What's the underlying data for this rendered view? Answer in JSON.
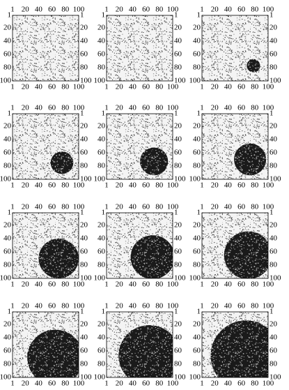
{
  "chart_data": [
    {
      "type": "heatmap",
      "xlim": [
        1,
        100
      ],
      "ylim": [
        1,
        100
      ],
      "xticks": [
        1,
        20,
        40,
        60,
        80,
        100
      ],
      "yticks": [
        1,
        20,
        40,
        60,
        80,
        100
      ]
    },
    {
      "type": "heatmap",
      "xlim": [
        1,
        100
      ],
      "ylim": [
        1,
        100
      ],
      "xticks": [
        1,
        20,
        40,
        60,
        80,
        100
      ],
      "yticks": [
        1,
        20,
        40,
        60,
        80,
        100
      ]
    },
    {
      "type": "heatmap",
      "xlim": [
        1,
        100
      ],
      "ylim": [
        1,
        100
      ],
      "xticks": [
        1,
        20,
        40,
        60,
        80,
        100
      ],
      "yticks": [
        1,
        20,
        40,
        60,
        80,
        100
      ],
      "circle": {
        "x": 78,
        "y": 77,
        "r": 10
      }
    },
    {
      "type": "heatmap",
      "xlim": [
        1,
        100
      ],
      "ylim": [
        1,
        100
      ],
      "xticks": [
        1,
        20,
        40,
        60,
        80,
        100
      ],
      "yticks": [
        1,
        20,
        40,
        60,
        80,
        100
      ],
      "circle": {
        "x": 75,
        "y": 75,
        "r": 17
      }
    },
    {
      "type": "heatmap",
      "xlim": [
        1,
        100
      ],
      "ylim": [
        1,
        100
      ],
      "xticks": [
        1,
        20,
        40,
        60,
        80,
        100
      ],
      "yticks": [
        1,
        20,
        40,
        60,
        80,
        100
      ],
      "circle": {
        "x": 72,
        "y": 73,
        "r": 21
      }
    },
    {
      "type": "heatmap",
      "xlim": [
        1,
        100
      ],
      "ylim": [
        1,
        100
      ],
      "xticks": [
        1,
        20,
        40,
        60,
        80,
        100
      ],
      "yticks": [
        1,
        20,
        40,
        60,
        80,
        100
      ],
      "circle": {
        "x": 73,
        "y": 70,
        "r": 24
      }
    },
    {
      "type": "heatmap",
      "xlim": [
        1,
        100
      ],
      "ylim": [
        1,
        100
      ],
      "xticks": [
        1,
        20,
        40,
        60,
        80,
        100
      ],
      "yticks": [
        1,
        20,
        40,
        60,
        80,
        100
      ],
      "circle": {
        "x": 70,
        "y": 70,
        "r": 30
      }
    },
    {
      "type": "heatmap",
      "xlim": [
        1,
        100
      ],
      "ylim": [
        1,
        100
      ],
      "xticks": [
        1,
        20,
        40,
        60,
        80,
        100
      ],
      "yticks": [
        1,
        20,
        40,
        60,
        80,
        100
      ],
      "circle": {
        "x": 70,
        "y": 68,
        "r": 33
      }
    },
    {
      "type": "heatmap",
      "xlim": [
        1,
        100
      ],
      "ylim": [
        1,
        100
      ],
      "xticks": [
        1,
        20,
        40,
        60,
        80,
        100
      ],
      "yticks": [
        1,
        20,
        40,
        60,
        80,
        100
      ],
      "circle": {
        "x": 70,
        "y": 65,
        "r": 36
      }
    },
    {
      "type": "heatmap",
      "xlim": [
        1,
        100
      ],
      "ylim": [
        1,
        100
      ],
      "xticks": [
        1,
        20,
        40,
        60,
        80,
        100
      ],
      "yticks": [
        1,
        20,
        40,
        60,
        80,
        100
      ],
      "circle": {
        "x": 65,
        "y": 70,
        "r": 42
      }
    },
    {
      "type": "heatmap",
      "xlim": [
        1,
        100
      ],
      "ylim": [
        1,
        100
      ],
      "xticks": [
        1,
        20,
        40,
        60,
        80,
        100
      ],
      "yticks": [
        1,
        20,
        40,
        60,
        80,
        100
      ],
      "circle": {
        "x": 65,
        "y": 67,
        "r": 46
      }
    },
    {
      "type": "heatmap",
      "xlim": [
        1,
        100
      ],
      "ylim": [
        1,
        100
      ],
      "xticks": [
        1,
        20,
        40,
        60,
        80,
        100
      ],
      "yticks": [
        1,
        20,
        40,
        60,
        80,
        100
      ],
      "circle": {
        "x": 67,
        "y": 67,
        "r": 53
      }
    }
  ]
}
